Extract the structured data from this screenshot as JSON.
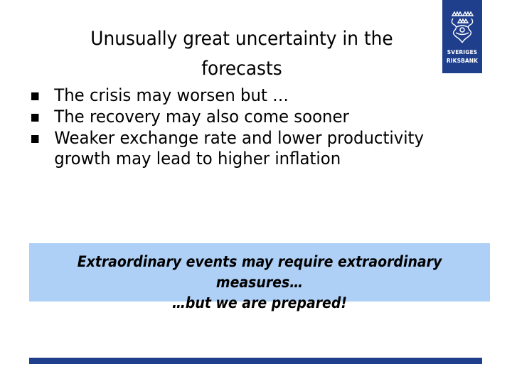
{
  "slide": {
    "title_line1": "Unusually great uncertainty in the",
    "title_line2": "forecasts",
    "bullets": [
      {
        "text": "The crisis may worsen but …"
      },
      {
        "text": "The recovery may also come sooner"
      },
      {
        "text": "Weaker exchange rate and lower productivity growth may lead to higher inflation"
      }
    ],
    "callout": {
      "line1": "Extraordinary events may require extraordinary measures…",
      "line2": "…but we are prepared!"
    }
  },
  "logo": {
    "text_line1": "SVERIGES",
    "text_line2": "RIKSBANK",
    "crest_icon": "riksbank-crest-icon"
  },
  "colors": {
    "brand_blue": "#1f3f8c",
    "callout_bg": "#aed0f6",
    "text": "#000000"
  }
}
